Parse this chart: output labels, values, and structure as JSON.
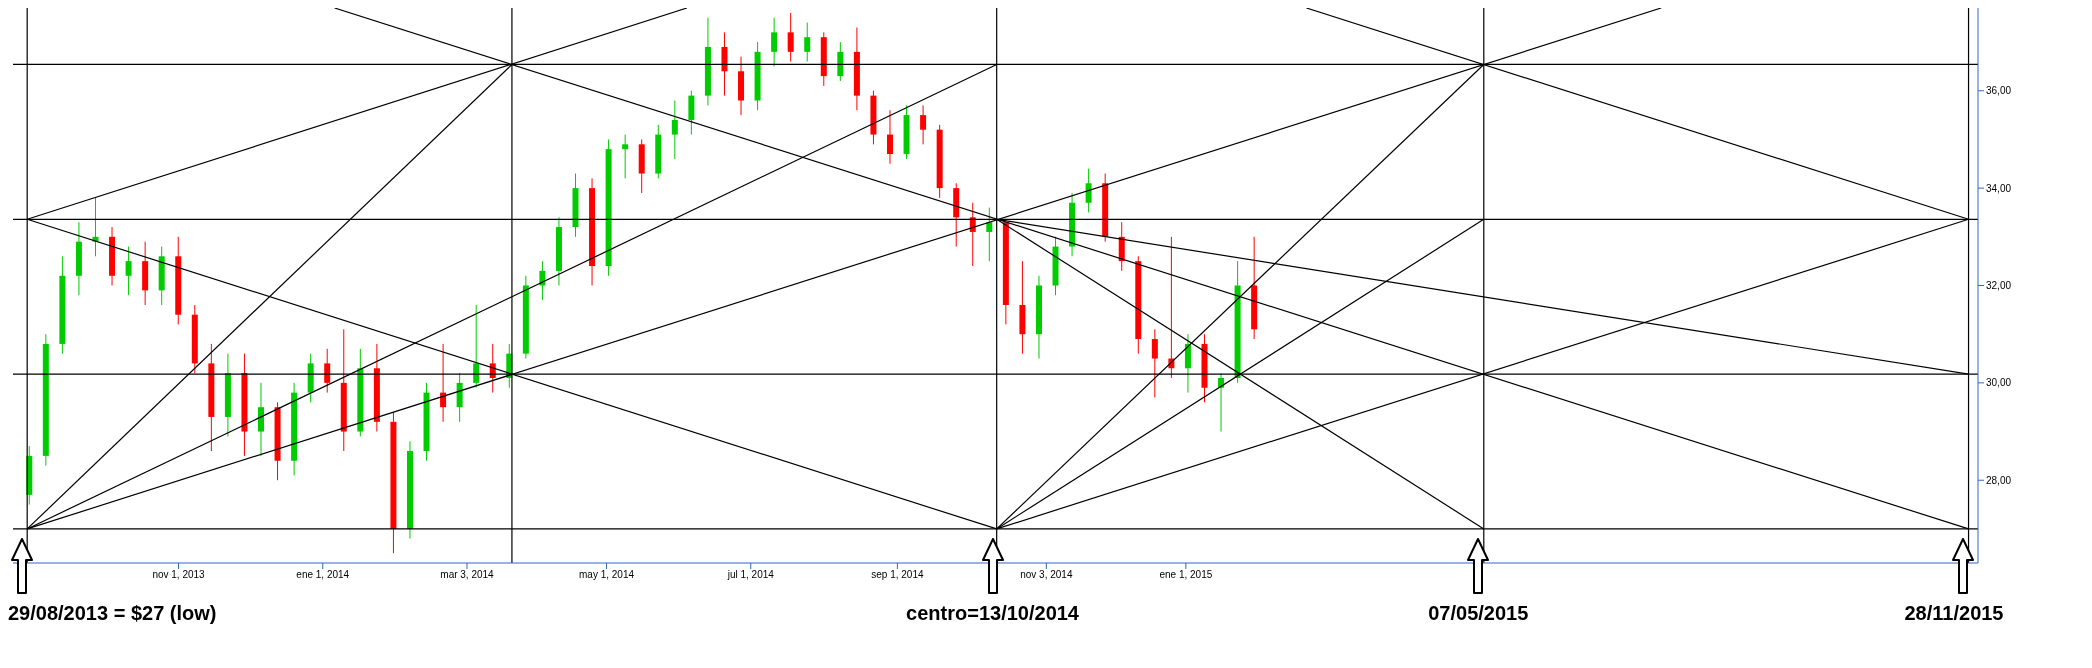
{
  "chart_data": {
    "type": "candlestick",
    "xlim": [
      "2013-08-23",
      "2015-12-02"
    ],
    "ylim": [
      26.3,
      37.7
    ],
    "xticks": [
      {
        "value": "2013-11-01",
        "label": "nov 1, 2013"
      },
      {
        "value": "2014-01-01",
        "label": "ene 1, 2014"
      },
      {
        "value": "2014-03-03",
        "label": "mar 3, 2014"
      },
      {
        "value": "2014-05-01",
        "label": "may 1, 2014"
      },
      {
        "value": "2014-07-01",
        "label": "jul 1, 2014"
      },
      {
        "value": "2014-09-01",
        "label": "sep 1, 2014"
      },
      {
        "value": "2014-11-03",
        "label": "nov 3, 2014"
      },
      {
        "value": "2015-01-01",
        "label": "ene 1, 2015"
      }
    ],
    "yticks": [
      {
        "value": 28,
        "label": "28,00"
      },
      {
        "value": 30,
        "label": "30,00"
      },
      {
        "value": 32,
        "label": "32,00"
      },
      {
        "value": 34,
        "label": "34,00"
      },
      {
        "value": 36,
        "label": "36,00"
      }
    ],
    "series": [
      {
        "color": "#00cc00",
        "x": [
          "2013-08-30",
          "2013-09-06",
          "2013-09-13",
          "2013-09-20",
          "2013-09-27",
          "2013-10-11",
          "2013-10-25",
          "2013-11-22",
          "2013-12-06",
          "2013-12-20",
          "2013-12-27",
          "2014-01-17",
          "2014-02-07",
          "2014-02-14",
          "2014-02-28",
          "2014-03-07",
          "2014-03-21",
          "2014-03-28",
          "2014-04-04",
          "2014-04-11",
          "2014-04-18",
          "2014-05-02",
          "2014-05-09",
          "2014-05-23",
          "2014-05-30",
          "2014-06-06",
          "2014-06-13",
          "2014-07-04",
          "2014-07-11",
          "2014-07-25",
          "2014-08-08",
          "2014-09-05",
          "2014-10-10",
          "2014-10-31",
          "2014-11-07",
          "2014-11-14",
          "2014-11-21",
          "2015-01-02",
          "2015-01-16",
          "2015-01-23"
        ],
        "ohlc": [
          [
            27.7,
            28.7,
            27.5,
            28.5
          ],
          [
            28.5,
            31.0,
            28.3,
            30.8
          ],
          [
            30.8,
            32.6,
            30.6,
            32.2
          ],
          [
            32.2,
            33.3,
            31.8,
            32.9
          ],
          [
            32.9,
            33.8,
            32.6,
            33.0
          ],
          [
            32.2,
            32.8,
            31.8,
            32.5
          ],
          [
            31.9,
            32.8,
            31.6,
            32.6
          ],
          [
            29.3,
            30.6,
            28.9,
            30.2
          ],
          [
            29.0,
            30.0,
            28.5,
            29.5
          ],
          [
            28.4,
            30.0,
            28.1,
            29.8
          ],
          [
            29.8,
            30.6,
            29.6,
            30.4
          ],
          [
            29.0,
            30.7,
            28.9,
            30.3
          ],
          [
            27.0,
            28.8,
            26.8,
            28.6
          ],
          [
            28.6,
            30.0,
            28.4,
            29.8
          ],
          [
            29.5,
            30.2,
            29.2,
            30.0
          ],
          [
            30.0,
            31.6,
            29.9,
            30.4
          ],
          [
            30.1,
            30.8,
            29.9,
            30.6
          ],
          [
            30.6,
            32.2,
            30.5,
            32.0
          ],
          [
            32.0,
            32.5,
            31.7,
            32.3
          ],
          [
            32.3,
            33.4,
            32.0,
            33.2
          ],
          [
            33.2,
            34.3,
            33.0,
            34.0
          ],
          [
            32.4,
            35.0,
            32.2,
            34.8
          ],
          [
            34.8,
            35.1,
            34.2,
            34.9
          ],
          [
            34.3,
            35.3,
            34.2,
            35.1
          ],
          [
            35.1,
            35.8,
            34.6,
            35.4
          ],
          [
            35.4,
            36.0,
            35.1,
            35.9
          ],
          [
            35.9,
            37.5,
            35.7,
            36.9
          ],
          [
            35.8,
            37.0,
            35.6,
            36.8
          ],
          [
            36.8,
            37.5,
            36.5,
            37.2
          ],
          [
            36.8,
            37.4,
            36.6,
            37.1
          ],
          [
            36.3,
            37.0,
            36.2,
            36.8
          ],
          [
            34.7,
            35.7,
            34.6,
            35.5
          ],
          [
            33.1,
            33.6,
            32.5,
            33.3
          ],
          [
            31.0,
            32.2,
            30.5,
            32.0
          ],
          [
            32.0,
            33.0,
            31.8,
            32.8
          ],
          [
            32.8,
            33.9,
            32.6,
            33.7
          ],
          [
            33.7,
            34.4,
            33.5,
            34.1
          ],
          [
            30.3,
            31.0,
            29.8,
            30.8
          ],
          [
            29.9,
            30.2,
            29.0,
            30.1
          ],
          [
            30.1,
            32.5,
            30.0,
            32.0
          ]
        ]
      },
      {
        "color": "#ff0000",
        "x": [
          "2013-10-04",
          "2013-10-18",
          "2013-11-01",
          "2013-11-08",
          "2013-11-15",
          "2013-11-29",
          "2013-12-13",
          "2014-01-03",
          "2014-01-10",
          "2014-01-24",
          "2014-01-31",
          "2014-02-21",
          "2014-03-14",
          "2014-04-25",
          "2014-05-16",
          "2014-06-20",
          "2014-06-27",
          "2014-07-18",
          "2014-08-01",
          "2014-08-15",
          "2014-08-22",
          "2014-08-29",
          "2014-09-12",
          "2014-09-19",
          "2014-09-26",
          "2014-10-03",
          "2014-10-17",
          "2014-10-24",
          "2014-11-28",
          "2014-12-05",
          "2014-12-12",
          "2014-12-19",
          "2014-12-26",
          "2015-01-09",
          "2015-01-30"
        ],
        "ohlc": [
          [
            33.0,
            33.2,
            32.0,
            32.2
          ],
          [
            32.5,
            32.9,
            31.6,
            31.9
          ],
          [
            32.6,
            33.0,
            31.2,
            31.4
          ],
          [
            31.4,
            31.6,
            30.2,
            30.4
          ],
          [
            30.4,
            30.8,
            28.6,
            29.3
          ],
          [
            30.2,
            30.6,
            28.5,
            29.0
          ],
          [
            29.5,
            29.6,
            28.0,
            28.4
          ],
          [
            30.4,
            30.7,
            29.8,
            30.0
          ],
          [
            30.0,
            31.1,
            28.6,
            29.0
          ],
          [
            30.3,
            30.8,
            29.0,
            29.2
          ],
          [
            29.2,
            29.4,
            26.5,
            27.0
          ],
          [
            29.8,
            30.8,
            29.2,
            29.5
          ],
          [
            30.4,
            30.8,
            29.8,
            30.1
          ],
          [
            34.0,
            34.2,
            32.0,
            32.4
          ],
          [
            34.9,
            35.0,
            33.9,
            34.3
          ],
          [
            36.9,
            37.2,
            35.9,
            36.4
          ],
          [
            36.4,
            36.7,
            35.5,
            35.8
          ],
          [
            37.2,
            37.6,
            36.6,
            36.8
          ],
          [
            37.1,
            37.2,
            36.1,
            36.3
          ],
          [
            36.8,
            37.3,
            35.6,
            35.9
          ],
          [
            35.9,
            36.0,
            34.9,
            35.1
          ],
          [
            35.1,
            35.6,
            34.5,
            34.7
          ],
          [
            35.5,
            35.7,
            34.9,
            35.2
          ],
          [
            35.2,
            35.3,
            33.8,
            34.0
          ],
          [
            34.0,
            34.1,
            32.8,
            33.4
          ],
          [
            33.4,
            33.7,
            32.4,
            33.1
          ],
          [
            33.3,
            33.3,
            31.2,
            31.6
          ],
          [
            31.6,
            32.5,
            30.6,
            31.0
          ],
          [
            34.1,
            34.3,
            32.9,
            33.0
          ],
          [
            33.0,
            33.3,
            32.3,
            32.5
          ],
          [
            32.5,
            32.6,
            30.6,
            30.9
          ],
          [
            30.9,
            31.1,
            29.7,
            30.5
          ],
          [
            30.5,
            33.0,
            30.1,
            30.3
          ],
          [
            30.8,
            31.0,
            29.6,
            29.9
          ],
          [
            32.0,
            33.0,
            30.9,
            31.1
          ]
        ]
      },
      {
        "type": "line",
        "color": "#000000",
        "x": [
          "2013-08-29",
          "2014-03-22"
        ],
        "values": [
          27,
          36.54
        ]
      },
      {
        "type": "line",
        "color": "#000000",
        "x": [
          "2013-08-29",
          "2014-10-13"
        ],
        "values": [
          27,
          36.54
        ]
      },
      {
        "type": "line",
        "color": "#000000",
        "x": [
          "2013-08-29",
          "2015-07-21"
        ],
        "values": [
          27,
          37.7
        ]
      },
      {
        "type": "line",
        "color": "#000000",
        "x": [
          "2013-08-29",
          "2014-06-04"
        ],
        "values": [
          33.36,
          37.7
        ]
      },
      {
        "type": "line",
        "color": "#000000",
        "x": [
          "2013-08-29",
          "2014-10-13"
        ],
        "values": [
          33.36,
          27
        ]
      },
      {
        "type": "line",
        "color": "#000000",
        "x": [
          "2014-01-06",
          "2015-11-28"
        ],
        "values": [
          37.7,
          27
        ]
      },
      {
        "type": "line",
        "color": "#000000",
        "x": [
          "2014-10-13",
          "2015-05-07"
        ],
        "values": [
          27,
          36.54
        ]
      },
      {
        "type": "line",
        "color": "#000000",
        "x": [
          "2014-10-13",
          "2015-05-07"
        ],
        "values": [
          27,
          33.36
        ]
      },
      {
        "type": "line",
        "color": "#000000",
        "x": [
          "2014-10-13",
          "2015-11-28"
        ],
        "values": [
          27,
          33.36
        ]
      },
      {
        "type": "line",
        "color": "#000000",
        "x": [
          "2014-10-13",
          "2015-05-07"
        ],
        "values": [
          33.36,
          27
        ]
      },
      {
        "type": "line",
        "color": "#000000",
        "x": [
          "2014-10-13",
          "2015-11-28"
        ],
        "values": [
          33.36,
          30.18
        ]
      },
      {
        "type": "line",
        "color": "#000000",
        "x": [
          "2015-02-21",
          "2015-11-28"
        ],
        "values": [
          37.7,
          33.36
        ]
      }
    ],
    "ref_lines": [
      {
        "axis": "y",
        "value": 27,
        "color": "#000000"
      },
      {
        "axis": "y",
        "value": 30.18,
        "color": "#000000"
      },
      {
        "axis": "y",
        "value": 33.36,
        "color": "#000000"
      },
      {
        "axis": "y",
        "value": 36.54,
        "color": "#000000"
      },
      {
        "axis": "x",
        "value": "2013-08-29",
        "color": "#000000"
      },
      {
        "axis": "x",
        "value": "2014-03-22",
        "color": "#000000"
      },
      {
        "axis": "x",
        "value": "2014-10-13",
        "color": "#000000"
      },
      {
        "axis": "x",
        "value": "2015-05-07",
        "color": "#000000"
      },
      {
        "axis": "x",
        "value": "2015-11-28",
        "color": "#000000"
      }
    ],
    "annotations": [
      "29/08/2013 = $27 (low)",
      "centro=13/10/2014",
      "07/05/2015",
      "28/11/2015"
    ]
  }
}
